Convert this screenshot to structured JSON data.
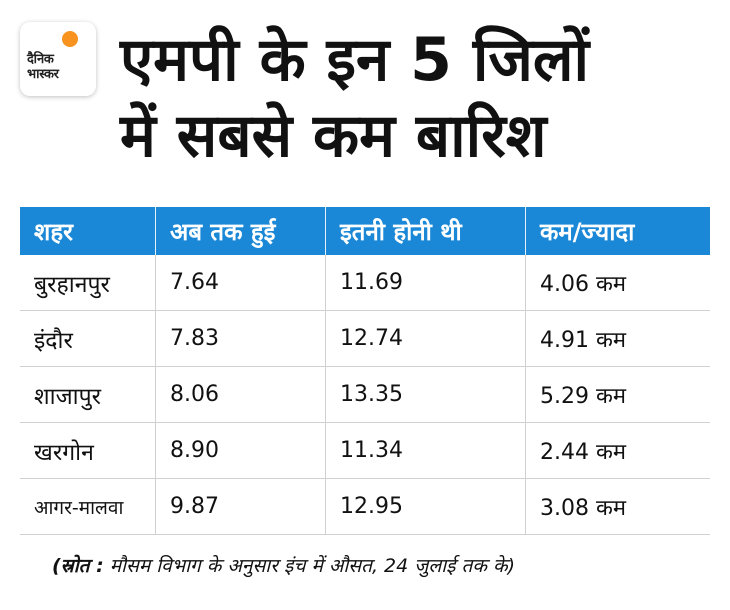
{
  "logo": {
    "line1": "दैनिक",
    "line2": "भास्कर",
    "accent_color": "#f7931e"
  },
  "headline": {
    "line1": "एमपी के इन 5 जिलों",
    "line2": "में सबसे कम बारिश"
  },
  "table": {
    "header_color": "#1a88d6",
    "headers": [
      "शहर",
      "अब तक हुई",
      "इतनी होनी थी",
      "कम/ज्यादा"
    ],
    "rows": [
      {
        "city": "बुरहानपुर",
        "actual": "7.64",
        "expected": "11.69",
        "diff": "4.06 कम"
      },
      {
        "city": "इंदौर",
        "actual": "7.83",
        "expected": "12.74",
        "diff": "4.91 कम"
      },
      {
        "city": "शाजापुर",
        "actual": "8.06",
        "expected": "13.35",
        "diff": "5.29 कम"
      },
      {
        "city": "खरगोन",
        "actual": "8.90",
        "expected": "11.34",
        "diff": "2.44 कम"
      },
      {
        "city": "आगर-मालवा",
        "actual": "9.87",
        "expected": "12.95",
        "diff": "3.08 कम"
      }
    ]
  },
  "source": {
    "label": "(स्रोत :",
    "text": " मौसम विभाग के अनुसार इंच में औसत, 24 जुलाई तक के)"
  }
}
